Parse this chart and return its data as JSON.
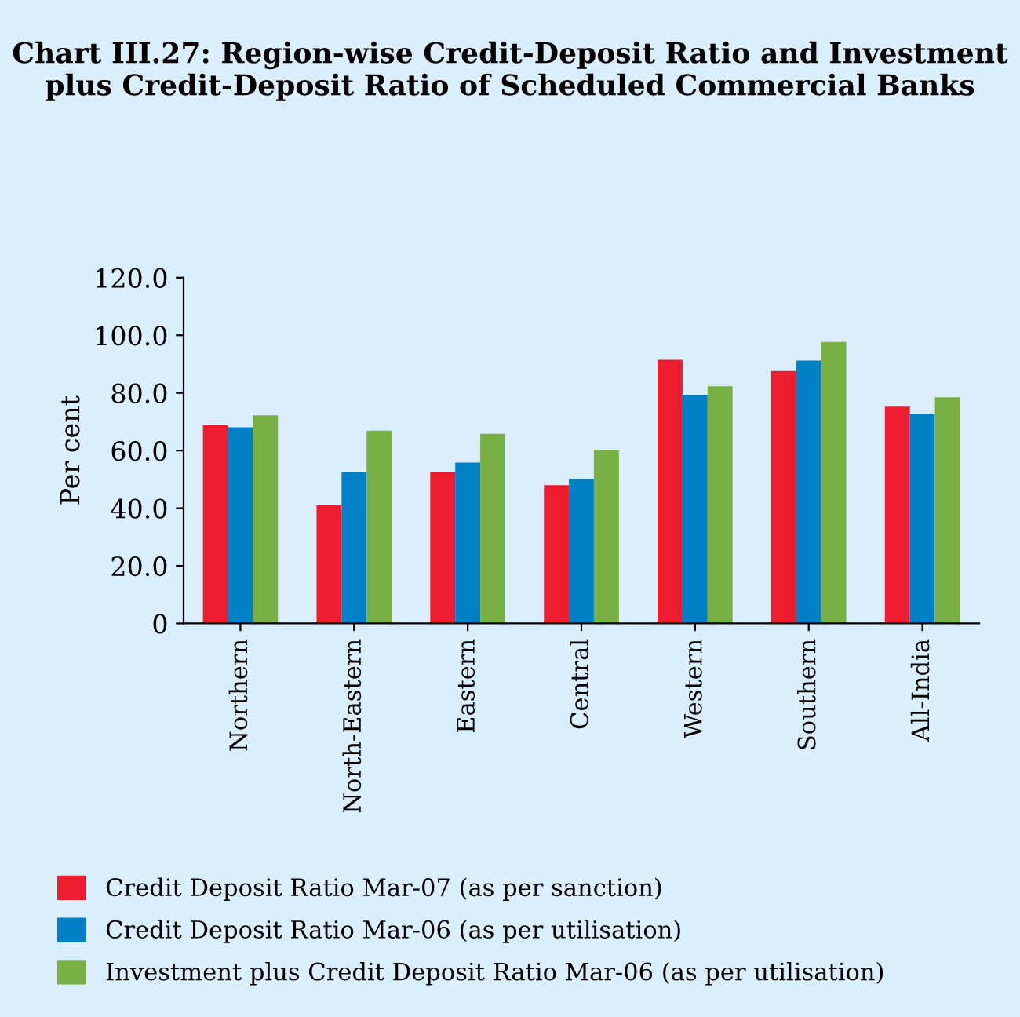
{
  "chart_data": {
    "type": "bar",
    "title": "Chart III.27: Region-wise Credit-Deposit Ratio and Investment plus Credit-Deposit Ratio of Scheduled Commercial Banks",
    "ylabel": "Per cent",
    "categories": [
      "Northern",
      "North-Eastern",
      "Eastern",
      "Central",
      "Western",
      "Southern",
      "All-India"
    ],
    "series": [
      {
        "name": "Credit Deposit Ratio Mar-07 (as per sanction)",
        "color": "#ed1c2e",
        "values": [
          68.8,
          41.0,
          52.6,
          48.0,
          91.5,
          87.6,
          75.2
        ]
      },
      {
        "name": "Credit Deposit Ratio Mar-06 (as per utilisation)",
        "color": "#0080c6",
        "values": [
          68.1,
          52.5,
          55.8,
          50.1,
          79.1,
          91.2,
          72.6
        ]
      },
      {
        "name": "Investment plus Credit Deposit Ratio Mar-06 (as per utilisation)",
        "color": "#78b043",
        "values": [
          72.2,
          66.9,
          65.8,
          60.1,
          82.3,
          97.7,
          78.5
        ]
      }
    ],
    "ylim": [
      0,
      120
    ],
    "yticks": [
      0,
      {
        "value": 20,
        "label": "20.0"
      },
      {
        "value": 40,
        "label": "40.0"
      },
      {
        "value": 60,
        "label": "60.0"
      },
      {
        "value": 80,
        "label": "80.0"
      },
      {
        "value": 100,
        "label": "100.0"
      },
      {
        "value": 120,
        "label": "120.0"
      }
    ],
    "grid": false,
    "legend": "bottom"
  }
}
